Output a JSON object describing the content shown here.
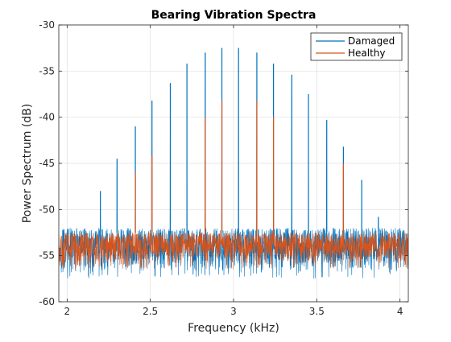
{
  "chart_data": {
    "type": "line",
    "title": "Bearing Vibration Spectra",
    "xlabel": "Frequency (kHz)",
    "ylabel": "Power Spectrum (dB)",
    "xlim": [
      1.95,
      4.05
    ],
    "ylim": [
      -60,
      -30
    ],
    "xticks": [
      2,
      2.5,
      3,
      3.5,
      4
    ],
    "xtick_labels": [
      "2",
      "2.5",
      "3",
      "3.5",
      "4"
    ],
    "yticks": [
      -60,
      -55,
      -50,
      -45,
      -40,
      -35,
      -30
    ],
    "ytick_labels": [
      "-60",
      "-55",
      "-50",
      "-45",
      "-40",
      "-35",
      "-30"
    ],
    "grid": true,
    "legend_position": "top-right",
    "series": [
      {
        "name": "Damaged",
        "color": "#0072BD",
        "noise_floor_db": -54,
        "noise_range_db": [
          -57.5,
          -52
        ],
        "peaks": [
          {
            "x": 2.2,
            "y": -48.0
          },
          {
            "x": 2.3,
            "y": -44.5
          },
          {
            "x": 2.41,
            "y": -41.0
          },
          {
            "x": 2.51,
            "y": -38.2
          },
          {
            "x": 2.62,
            "y": -36.3
          },
          {
            "x": 2.72,
            "y": -34.2
          },
          {
            "x": 2.83,
            "y": -33.0
          },
          {
            "x": 2.93,
            "y": -32.5
          },
          {
            "x": 3.03,
            "y": -32.5
          },
          {
            "x": 3.14,
            "y": -33.0
          },
          {
            "x": 3.24,
            "y": -34.2
          },
          {
            "x": 3.35,
            "y": -35.4
          },
          {
            "x": 3.45,
            "y": -37.5
          },
          {
            "x": 3.56,
            "y": -40.3
          },
          {
            "x": 3.66,
            "y": -43.2
          },
          {
            "x": 3.77,
            "y": -46.8
          },
          {
            "x": 3.87,
            "y": -50.8
          }
        ]
      },
      {
        "name": "Healthy",
        "color": "#D95319",
        "noise_floor_db": -54,
        "noise_range_db": [
          -56.5,
          -52.5
        ],
        "peaks": [
          {
            "x": 2.41,
            "y": -46.0
          },
          {
            "x": 2.51,
            "y": -44.2
          },
          {
            "x": 2.83,
            "y": -40.0
          },
          {
            "x": 2.93,
            "y": -38.2
          },
          {
            "x": 3.14,
            "y": -38.2
          },
          {
            "x": 3.24,
            "y": -40.0
          },
          {
            "x": 3.66,
            "y": -45.0
          }
        ]
      }
    ]
  }
}
